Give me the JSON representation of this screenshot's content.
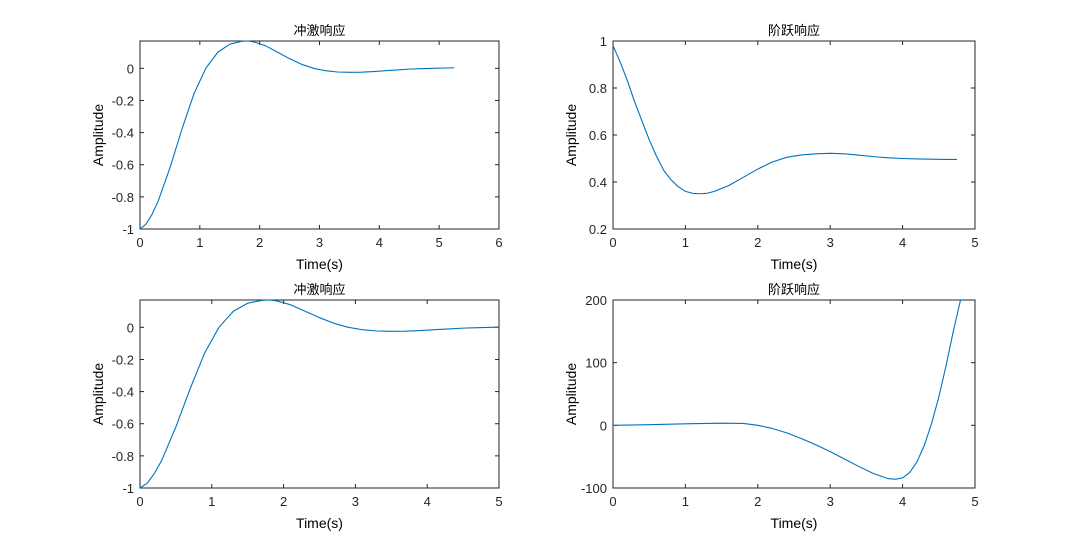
{
  "figure": {
    "background": "#ffffff",
    "line_color": "#0072bd",
    "axis_color": "#262626"
  },
  "chart_data": [
    {
      "type": "line",
      "title": "冲激响应",
      "xlabel": "Time(s)",
      "ylabel": "Amplitude",
      "xlim": [
        0,
        6
      ],
      "ylim": [
        -1,
        0.17
      ],
      "xticks": [
        0,
        1,
        2,
        3,
        4,
        5,
        6
      ],
      "yticks": [
        0,
        -0.2,
        -0.4,
        -0.6,
        -0.8,
        -1
      ],
      "ytick_labels": [
        "0",
        "-0.2",
        "-0.4",
        "-0.6",
        "-0.8",
        "-1"
      ],
      "grid": false,
      "series": [
        {
          "x": [
            0,
            0.1,
            0.2,
            0.3,
            0.5,
            0.7,
            0.9,
            1.1,
            1.3,
            1.5,
            1.7,
            1.8,
            1.9,
            2.1,
            2.3,
            2.5,
            2.7,
            2.9,
            3.1,
            3.3,
            3.5,
            3.7,
            3.9,
            4.1,
            4.3,
            4.5,
            4.7,
            4.9,
            5.1,
            5.25
          ],
          "y": [
            -1,
            -0.97,
            -0.91,
            -0.83,
            -0.62,
            -0.38,
            -0.16,
            0.0,
            0.1,
            0.15,
            0.168,
            0.17,
            0.165,
            0.14,
            0.1,
            0.06,
            0.025,
            0.0,
            -0.015,
            -0.023,
            -0.025,
            -0.024,
            -0.02,
            -0.015,
            -0.01,
            -0.005,
            -0.002,
            0.0,
            0.002,
            0.003
          ]
        }
      ]
    },
    {
      "type": "line",
      "title": "阶跃响应",
      "xlabel": "Time(s)",
      "ylabel": "Amplitude",
      "xlim": [
        0,
        5
      ],
      "ylim": [
        0.2,
        1
      ],
      "xticks": [
        0,
        1,
        2,
        3,
        4,
        5
      ],
      "yticks": [
        0.2,
        0.4,
        0.6,
        0.8,
        1
      ],
      "ytick_labels": [
        "0.2",
        "0.4",
        "0.6",
        "0.8",
        "1"
      ],
      "grid": false,
      "series": [
        {
          "x": [
            0,
            0.1,
            0.2,
            0.3,
            0.4,
            0.5,
            0.6,
            0.7,
            0.8,
            0.9,
            1.0,
            1.1,
            1.2,
            1.3,
            1.4,
            1.6,
            1.8,
            2.0,
            2.2,
            2.4,
            2.6,
            2.8,
            3.0,
            3.2,
            3.4,
            3.6,
            3.8,
            4.0,
            4.2,
            4.4,
            4.6,
            4.75
          ],
          "y": [
            0.98,
            0.91,
            0.83,
            0.74,
            0.66,
            0.58,
            0.51,
            0.45,
            0.41,
            0.38,
            0.36,
            0.352,
            0.35,
            0.352,
            0.36,
            0.385,
            0.42,
            0.455,
            0.485,
            0.505,
            0.515,
            0.52,
            0.522,
            0.52,
            0.514,
            0.508,
            0.503,
            0.5,
            0.498,
            0.497,
            0.496,
            0.496
          ]
        }
      ]
    },
    {
      "type": "line",
      "title": "冲激响应",
      "xlabel": "Time(s)",
      "ylabel": "Amplitude",
      "xlim": [
        0,
        5
      ],
      "ylim": [
        -1,
        0.17
      ],
      "xticks": [
        0,
        1,
        2,
        3,
        4,
        5
      ],
      "yticks": [
        0,
        -0.2,
        -0.4,
        -0.6,
        -0.8,
        -1
      ],
      "ytick_labels": [
        "0",
        "-0.2",
        "-0.4",
        "-0.6",
        "-0.8",
        "-1"
      ],
      "grid": false,
      "series": [
        {
          "x": [
            0,
            0.1,
            0.2,
            0.3,
            0.5,
            0.7,
            0.9,
            1.1,
            1.3,
            1.5,
            1.7,
            1.8,
            1.9,
            2.1,
            2.3,
            2.5,
            2.7,
            2.9,
            3.1,
            3.3,
            3.5,
            3.7,
            3.9,
            4.1,
            4.3,
            4.5,
            4.7,
            4.9,
            5.0
          ],
          "y": [
            -1,
            -0.97,
            -0.91,
            -0.83,
            -0.62,
            -0.38,
            -0.16,
            0.0,
            0.1,
            0.15,
            0.168,
            0.17,
            0.165,
            0.14,
            0.1,
            0.06,
            0.025,
            0.0,
            -0.015,
            -0.023,
            -0.025,
            -0.024,
            -0.02,
            -0.015,
            -0.01,
            -0.005,
            -0.002,
            0.0,
            0.001
          ]
        }
      ]
    },
    {
      "type": "line",
      "title": "阶跃响应",
      "xlabel": "Time(s)",
      "ylabel": "Amplitude",
      "xlim": [
        0,
        5
      ],
      "ylim": [
        -100,
        200
      ],
      "xticks": [
        0,
        1,
        2,
        3,
        4,
        5
      ],
      "yticks": [
        -100,
        0,
        100,
        200
      ],
      "ytick_labels": [
        "-100",
        "0",
        "100",
        "200"
      ],
      "grid": false,
      "series": [
        {
          "x": [
            0,
            0.5,
            1.0,
            1.5,
            1.8,
            2.0,
            2.2,
            2.4,
            2.6,
            2.8,
            3.0,
            3.2,
            3.4,
            3.6,
            3.8,
            3.9,
            4.0,
            4.1,
            4.2,
            4.3,
            4.4,
            4.5,
            4.6,
            4.7,
            4.8
          ],
          "y": [
            0,
            1,
            2.5,
            3.5,
            3,
            0,
            -5,
            -12,
            -21,
            -31,
            -42,
            -54,
            -66,
            -77,
            -85,
            -86,
            -84,
            -75,
            -58,
            -32,
            3,
            45,
            95,
            150,
            200
          ]
        }
      ]
    }
  ]
}
